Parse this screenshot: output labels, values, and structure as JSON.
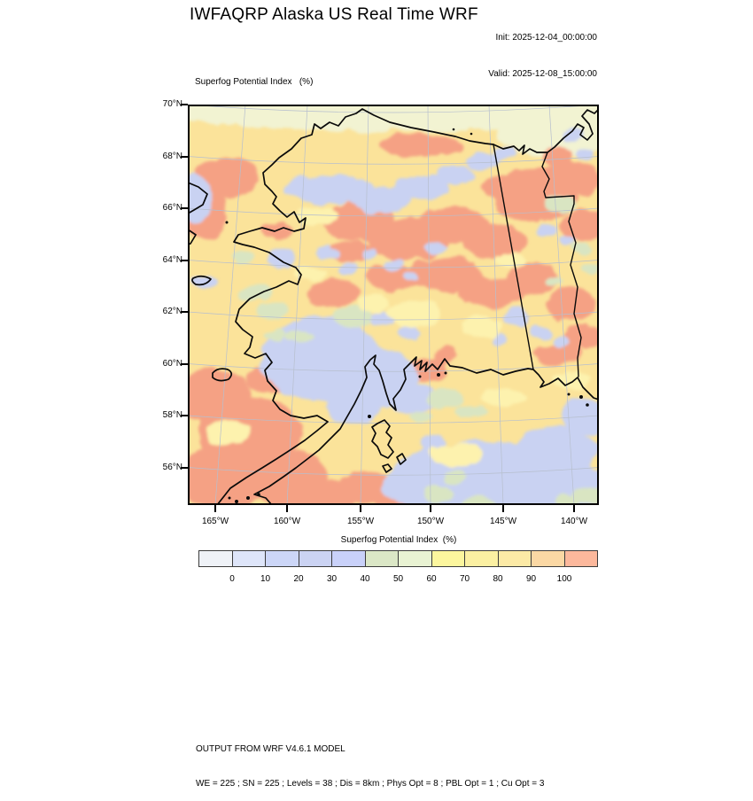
{
  "header": {
    "title": "IWFAQRP Alaska US Real Time WRF",
    "init_line": "Init: 2025-12-04_00:00:00",
    "valid_line": "Valid: 2025-12-08_15:00:00"
  },
  "map": {
    "panel_label": "Superfog Potential Index   (%)",
    "lat_tick_labels": [
      "70°N",
      "68°N",
      "66°N",
      "64°N",
      "62°N",
      "60°N",
      "58°N",
      "56°N"
    ],
    "lon_tick_labels": [
      "165°W",
      "160°W",
      "155°W",
      "150°W",
      "145°W",
      "140°W"
    ]
  },
  "colorbar": {
    "title": "Superfog Potential Index  (%)",
    "tick_labels": [
      "0",
      "10",
      "20",
      "30",
      "40",
      "50",
      "60",
      "70",
      "80",
      "90",
      "100"
    ],
    "segment_colors": [
      "#eff2f7",
      "#dee5f9",
      "#ccd6f7",
      "#cbd3f3",
      "#c9d1f9",
      "#dbe7c6",
      "#e9f3d3",
      "#fcf69e",
      "#fbf0a2",
      "#fceaa6",
      "#fbd8a4",
      "#fcb89c"
    ]
  },
  "field_colors": {
    "high_salmon": "#f5a184",
    "base_yellow": "#fbe39a",
    "pale_yellow": "#fdf2ae",
    "low_lavender": "#c9d2f2",
    "green": "#d9e5c2",
    "sea_pale": "#f2f3d2",
    "coastline": "#0a0a0a",
    "graticule": "#b7bfce"
  },
  "footer": {
    "line1": "OUTPUT FROM WRF V4.6.1 MODEL",
    "line2": "WE = 225 ; SN = 225 ; Levels = 38 ; Dis = 8km ; Phys Opt = 8 ; PBL Opt = 1 ; Cu Opt = 3"
  }
}
